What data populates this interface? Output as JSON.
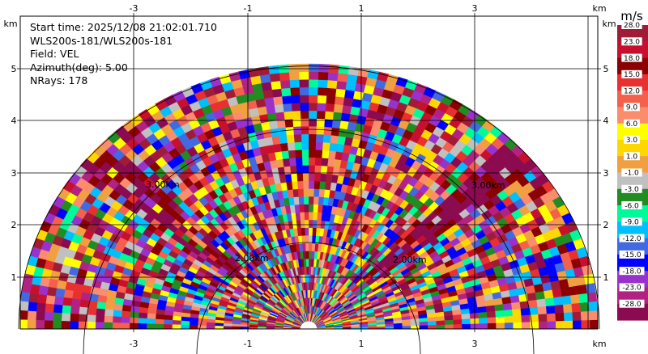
{
  "info": {
    "start_time": "Start time: 2025/12/08 21:02:01.710",
    "station": "WLS200s-181/WLS200s-181",
    "field": "Field: VEL",
    "azimuth": "Azimuth(deg): 5.00",
    "nrays": "NRays: 178"
  },
  "axes": {
    "x_ticks": [
      "-3",
      "-1",
      "1",
      "3"
    ],
    "y_ticks": [
      "1",
      "2",
      "3",
      "4",
      "5"
    ],
    "unit": "km"
  },
  "range_rings": [
    "2.00km",
    "3.00km"
  ],
  "colorbar": {
    "unit": "m/s",
    "labels": [
      "28.0",
      "23.0",
      "18.0",
      "15.0",
      "12.0",
      "9.0",
      "6.0",
      "3.0",
      "1.0",
      "-1.0",
      "-3.0",
      "-6.0",
      "-9.0",
      "-12.0",
      "-15.0",
      "-18.0",
      "-23.0",
      "-28.0"
    ],
    "colors": [
      "#a01c36",
      "#c8102e",
      "#8b0000",
      "#e83030",
      "#f4604c",
      "#fb8c6c",
      "#ffff00",
      "#ffd700",
      "#f0a040",
      "#c0c0c0",
      "#228b22",
      "#00fa9a",
      "#00bfff",
      "#4169e1",
      "#0000ff",
      "#9932cc",
      "#b22283",
      "#8b0a50"
    ]
  },
  "chart_data": {
    "type": "heatmap",
    "field": "VEL",
    "units": "m/s",
    "azimuth_deg": 5.0,
    "nrays": 178,
    "x_range_km": [
      -5.4,
      5.0
    ],
    "y_range_km": [
      0,
      5.35
    ],
    "max_range_km": 5.1
  }
}
